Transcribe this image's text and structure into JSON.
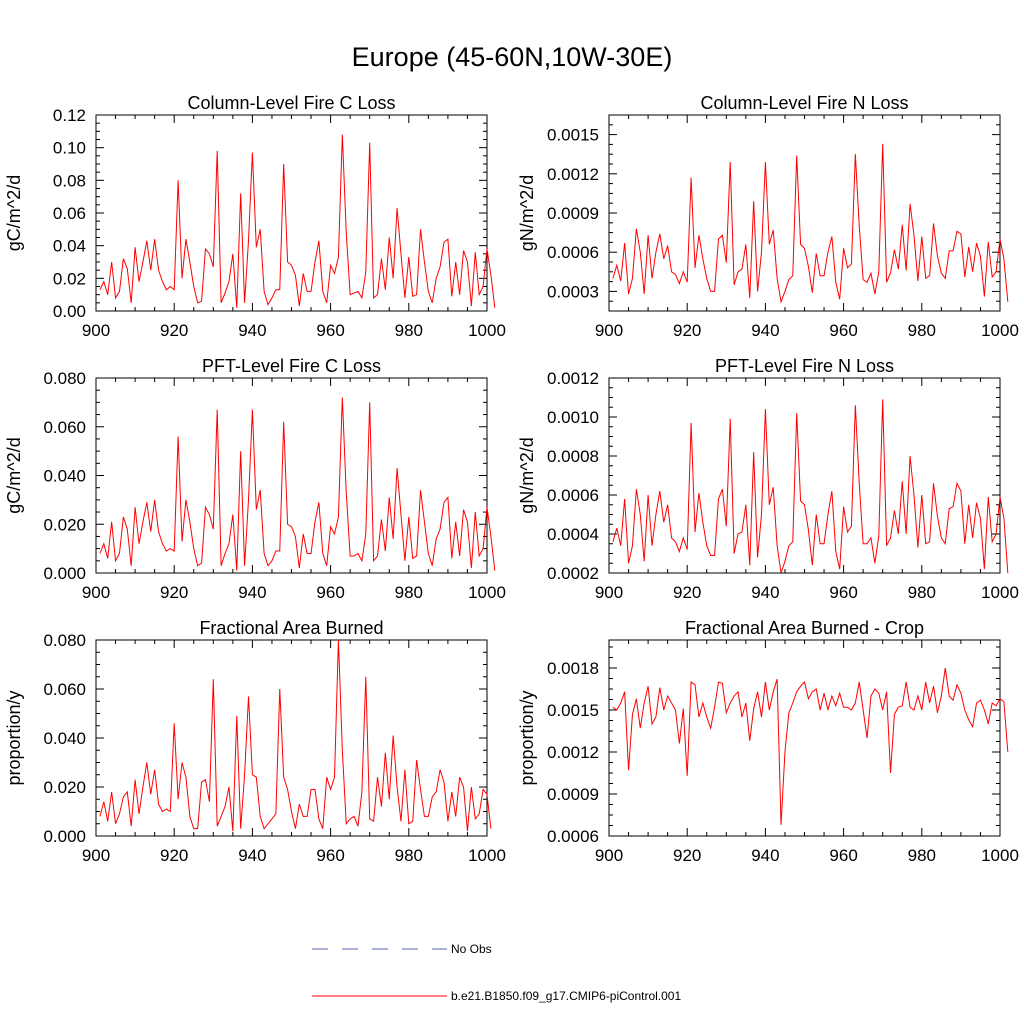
{
  "title": "Europe (45-60N,10W-30E)",
  "colors": {
    "series": "#ff0000",
    "obs": "#5566aa",
    "axis": "#000000"
  },
  "legend": {
    "obs_label": "No Obs",
    "run_label": "b.e21.B1850.f09_g17.CMIP6-piControl.001"
  },
  "chart_data": [
    {
      "type": "line",
      "title": "Column-Level Fire C Loss",
      "ylabel": "gC/m^2/d",
      "xlim": [
        900,
        1000
      ],
      "ylim": [
        0,
        0.12
      ],
      "xticks": [
        900,
        920,
        940,
        960,
        980,
        1000
      ],
      "xtick_labels": [
        "900",
        "920",
        "940",
        "960",
        "980",
        "1000"
      ],
      "yticks": [
        0,
        0.02,
        0.04,
        0.06,
        0.08,
        0.1,
        0.12
      ],
      "ytick_labels": [
        "0.00",
        "0.02",
        "0.04",
        "0.06",
        "0.08",
        "0.10",
        "0.12"
      ],
      "x_start": 901,
      "values": [
        0.013,
        0.018,
        0.01,
        0.03,
        0.008,
        0.012,
        0.032,
        0.026,
        0.005,
        0.039,
        0.018,
        0.03,
        0.043,
        0.025,
        0.044,
        0.025,
        0.018,
        0.013,
        0.015,
        0.013,
        0.08,
        0.02,
        0.044,
        0.03,
        0.015,
        0.005,
        0.006,
        0.038,
        0.035,
        0.027,
        0.098,
        0.005,
        0.011,
        0.018,
        0.035,
        0.002,
        0.072,
        0.005,
        0.043,
        0.097,
        0.039,
        0.05,
        0.012,
        0.004,
        0.008,
        0.013,
        0.013,
        0.09,
        0.03,
        0.028,
        0.022,
        0.003,
        0.023,
        0.012,
        0.012,
        0.03,
        0.043,
        0.012,
        0.005,
        0.028,
        0.023,
        0.033,
        0.108,
        0.048,
        0.01,
        0.011,
        0.012,
        0.008,
        0.024,
        0.103,
        0.008,
        0.01,
        0.032,
        0.013,
        0.045,
        0.02,
        0.063,
        0.035,
        0.008,
        0.033,
        0.009,
        0.01,
        0.05,
        0.03,
        0.012,
        0.005,
        0.02,
        0.027,
        0.042,
        0.044,
        0.009,
        0.03,
        0.01,
        0.037,
        0.03,
        0.003,
        0.036,
        0.01,
        0.015,
        0.038,
        0.022,
        0.002
      ]
    },
    {
      "type": "line",
      "title": "Column-Level Fire N Loss",
      "ylabel": "gN/m^2/d",
      "xlim": [
        900,
        1000
      ],
      "ylim": [
        0.00015,
        0.00165
      ],
      "xticks": [
        900,
        920,
        940,
        960,
        980,
        1000
      ],
      "xtick_labels": [
        "900",
        "920",
        "940",
        "960",
        "980",
        "1000"
      ],
      "yticks": [
        0.0003,
        0.0006,
        0.0009,
        0.0012,
        0.0015
      ],
      "ytick_labels": [
        "0.0003",
        "0.0006",
        "0.0009",
        "0.0012",
        "0.0015"
      ],
      "x_start": 901,
      "values": [
        0.0004,
        0.0005,
        0.00038,
        0.00067,
        0.00028,
        0.0004,
        0.00078,
        0.0006,
        0.00028,
        0.00073,
        0.0004,
        0.0006,
        0.00074,
        0.00055,
        0.00065,
        0.00045,
        0.00043,
        0.00036,
        0.00045,
        0.00037,
        0.00117,
        0.00048,
        0.00073,
        0.00055,
        0.0004,
        0.0003,
        0.0003,
        0.0007,
        0.00073,
        0.00052,
        0.00129,
        0.00035,
        0.00045,
        0.00047,
        0.00066,
        0.00025,
        0.00099,
        0.0003,
        0.0006,
        0.00129,
        0.00066,
        0.00077,
        0.0004,
        0.00022,
        0.0003,
        0.00039,
        0.00042,
        0.00134,
        0.00066,
        0.00063,
        0.00049,
        0.00029,
        0.00059,
        0.00042,
        0.00042,
        0.0006,
        0.00072,
        0.00037,
        0.00024,
        0.00063,
        0.00048,
        0.00051,
        0.00135,
        0.0008,
        0.00039,
        0.00037,
        0.00044,
        0.00028,
        0.00045,
        0.00143,
        0.00037,
        0.00044,
        0.00062,
        0.00047,
        0.00081,
        0.00046,
        0.00097,
        0.00073,
        0.00038,
        0.00072,
        0.0004,
        0.00042,
        0.00082,
        0.00057,
        0.00044,
        0.0004,
        0.00061,
        0.00061,
        0.00076,
        0.00074,
        0.00041,
        0.00064,
        0.00045,
        0.00067,
        0.00057,
        0.00026,
        0.00068,
        0.00041,
        0.00045,
        0.0007,
        0.00055,
        0.00022
      ]
    },
    {
      "type": "line",
      "title": "PFT-Level Fire C Loss",
      "ylabel": "gC/m^2/d",
      "xlim": [
        900,
        1000
      ],
      "ylim": [
        0,
        0.08
      ],
      "xticks": [
        900,
        920,
        940,
        960,
        980,
        1000
      ],
      "xtick_labels": [
        "900",
        "920",
        "940",
        "960",
        "980",
        "1000"
      ],
      "yticks": [
        0,
        0.02,
        0.04,
        0.06,
        0.08
      ],
      "ytick_labels": [
        "0.000",
        "0.020",
        "0.040",
        "0.060",
        "0.080"
      ],
      "x_start": 901,
      "values": [
        0.008,
        0.012,
        0.006,
        0.021,
        0.005,
        0.008,
        0.023,
        0.018,
        0.003,
        0.027,
        0.012,
        0.021,
        0.029,
        0.017,
        0.03,
        0.017,
        0.012,
        0.009,
        0.01,
        0.009,
        0.056,
        0.013,
        0.03,
        0.021,
        0.01,
        0.003,
        0.004,
        0.027,
        0.024,
        0.018,
        0.067,
        0.003,
        0.008,
        0.012,
        0.024,
        0.001,
        0.05,
        0.003,
        0.03,
        0.067,
        0.026,
        0.034,
        0.008,
        0.003,
        0.005,
        0.009,
        0.009,
        0.062,
        0.02,
        0.019,
        0.015,
        0.002,
        0.016,
        0.008,
        0.008,
        0.021,
        0.029,
        0.008,
        0.003,
        0.019,
        0.016,
        0.023,
        0.072,
        0.033,
        0.007,
        0.007,
        0.008,
        0.005,
        0.016,
        0.07,
        0.005,
        0.007,
        0.022,
        0.009,
        0.031,
        0.014,
        0.043,
        0.024,
        0.005,
        0.023,
        0.006,
        0.007,
        0.034,
        0.021,
        0.008,
        0.003,
        0.014,
        0.018,
        0.029,
        0.031,
        0.006,
        0.021,
        0.007,
        0.026,
        0.021,
        0.002,
        0.025,
        0.007,
        0.01,
        0.027,
        0.015,
        0.001
      ]
    },
    {
      "type": "line",
      "title": "PFT-Level Fire N Loss",
      "ylabel": "gN/m^2/d",
      "xlim": [
        900,
        1000
      ],
      "ylim": [
        0.0002,
        0.0012
      ],
      "xticks": [
        900,
        920,
        940,
        960,
        980,
        1000
      ],
      "xtick_labels": [
        "900",
        "920",
        "940",
        "960",
        "980",
        "1000"
      ],
      "yticks": [
        0.0002,
        0.0004,
        0.0006,
        0.0008,
        0.001,
        0.0012
      ],
      "ytick_labels": [
        "0.0002",
        "0.0004",
        "0.0006",
        "0.0008",
        "0.0010",
        "0.0012"
      ],
      "x_start": 901,
      "values": [
        0.00036,
        0.00043,
        0.00034,
        0.00058,
        0.00025,
        0.00034,
        0.00063,
        0.0005,
        0.00026,
        0.0006,
        0.00034,
        0.0005,
        0.00062,
        0.00046,
        0.00055,
        0.00038,
        0.00036,
        0.00031,
        0.00038,
        0.00032,
        0.00097,
        0.00041,
        0.00061,
        0.00046,
        0.00034,
        0.00029,
        0.00029,
        0.00058,
        0.00063,
        0.00044,
        0.00099,
        0.0003,
        0.0004,
        0.00041,
        0.00055,
        0.00024,
        0.00082,
        0.00028,
        0.0005,
        0.00104,
        0.00055,
        0.00064,
        0.00034,
        0.0002,
        0.00026,
        0.00034,
        0.00036,
        0.00102,
        0.00057,
        0.00055,
        0.00042,
        0.00024,
        0.0005,
        0.00035,
        0.00035,
        0.0005,
        0.00062,
        0.00031,
        0.00022,
        0.00054,
        0.00041,
        0.00044,
        0.00106,
        0.00066,
        0.00035,
        0.00035,
        0.00038,
        0.00025,
        0.00039,
        0.00109,
        0.00034,
        0.00038,
        0.00052,
        0.0004,
        0.00067,
        0.0004,
        0.0008,
        0.0006,
        0.00033,
        0.0006,
        0.00035,
        0.00036,
        0.00066,
        0.00049,
        0.00038,
        0.00035,
        0.00053,
        0.00054,
        0.00066,
        0.00062,
        0.00035,
        0.00055,
        0.00038,
        0.00056,
        0.00048,
        0.00022,
        0.00059,
        0.00036,
        0.0004,
        0.00059,
        0.00048,
        0.0002
      ]
    },
    {
      "type": "line",
      "title": "Fractional Area Burned",
      "ylabel": "proportion/y",
      "xlim": [
        900,
        1000
      ],
      "ylim": [
        0,
        0.08
      ],
      "xticks": [
        900,
        920,
        940,
        960,
        980,
        1000
      ],
      "xtick_labels": [
        "900",
        "920",
        "940",
        "960",
        "980",
        "1000"
      ],
      "yticks": [
        0,
        0.02,
        0.04,
        0.06,
        0.08
      ],
      "ytick_labels": [
        "0.000",
        "0.020",
        "0.040",
        "0.060",
        "0.080"
      ],
      "x_start": 901,
      "values": [
        0.008,
        0.014,
        0.006,
        0.018,
        0.005,
        0.009,
        0.016,
        0.018,
        0.004,
        0.023,
        0.009,
        0.02,
        0.03,
        0.017,
        0.027,
        0.013,
        0.01,
        0.011,
        0.01,
        0.046,
        0.015,
        0.03,
        0.024,
        0.008,
        0.003,
        0.003,
        0.022,
        0.023,
        0.014,
        0.064,
        0.004,
        0.008,
        0.012,
        0.02,
        0.002,
        0.049,
        0.003,
        0.025,
        0.057,
        0.025,
        0.024,
        0.008,
        0.003,
        0.005,
        0.007,
        0.009,
        0.06,
        0.024,
        0.019,
        0.01,
        0.003,
        0.013,
        0.008,
        0.008,
        0.019,
        0.019,
        0.007,
        0.003,
        0.024,
        0.019,
        0.024,
        0.08,
        0.035,
        0.005,
        0.007,
        0.008,
        0.004,
        0.018,
        0.065,
        0.007,
        0.006,
        0.024,
        0.012,
        0.034,
        0.015,
        0.041,
        0.02,
        0.006,
        0.027,
        0.005,
        0.006,
        0.031,
        0.019,
        0.008,
        0.008,
        0.016,
        0.018,
        0.027,
        0.022,
        0.006,
        0.018,
        0.008,
        0.024,
        0.02,
        0.002,
        0.02,
        0.007,
        0.009,
        0.019,
        0.017,
        0.003
      ]
    },
    {
      "type": "line",
      "title": "Fractional Area Burned - Crop",
      "ylabel": "proportion/y",
      "xlim": [
        900,
        1000
      ],
      "ylim": [
        0.0006,
        0.002
      ],
      "xticks": [
        900,
        920,
        940,
        960,
        980,
        1000
      ],
      "xtick_labels": [
        "900",
        "920",
        "940",
        "960",
        "980",
        "1000"
      ],
      "yticks": [
        0.0006,
        0.0009,
        0.0012,
        0.0015,
        0.0018
      ],
      "ytick_labels": [
        "0.0006",
        "0.0009",
        "0.0012",
        "0.0015",
        "0.0018"
      ],
      "x_start": 901,
      "values": [
        0.00152,
        0.0015,
        0.00155,
        0.00163,
        0.00107,
        0.00147,
        0.00158,
        0.00137,
        0.00155,
        0.00167,
        0.0014,
        0.00145,
        0.00166,
        0.0015,
        0.0016,
        0.00155,
        0.0015,
        0.00126,
        0.00151,
        0.00103,
        0.0017,
        0.00168,
        0.00145,
        0.00155,
        0.00145,
        0.00137,
        0.00152,
        0.0017,
        0.00169,
        0.00148,
        0.00155,
        0.0016,
        0.00163,
        0.00145,
        0.00155,
        0.00128,
        0.00151,
        0.00163,
        0.00145,
        0.0017,
        0.0015,
        0.00163,
        0.00172,
        0.00068,
        0.0012,
        0.00148,
        0.00155,
        0.00163,
        0.00167,
        0.0017,
        0.00158,
        0.00163,
        0.00165,
        0.0015,
        0.00162,
        0.0015,
        0.0016,
        0.00153,
        0.00162,
        0.00152,
        0.00152,
        0.0015,
        0.00155,
        0.0017,
        0.0015,
        0.0013,
        0.0016,
        0.00165,
        0.00162,
        0.0015,
        0.00163,
        0.00105,
        0.00147,
        0.00152,
        0.00153,
        0.0017,
        0.00152,
        0.0015,
        0.0016,
        0.0015,
        0.0017,
        0.00155,
        0.00167,
        0.00148,
        0.0016,
        0.0018,
        0.0016,
        0.00157,
        0.00168,
        0.00162,
        0.0015,
        0.00143,
        0.00138,
        0.00155,
        0.00157,
        0.0015,
        0.0014,
        0.00155,
        0.00153,
        0.00158,
        0.00156,
        0.0012
      ]
    }
  ]
}
